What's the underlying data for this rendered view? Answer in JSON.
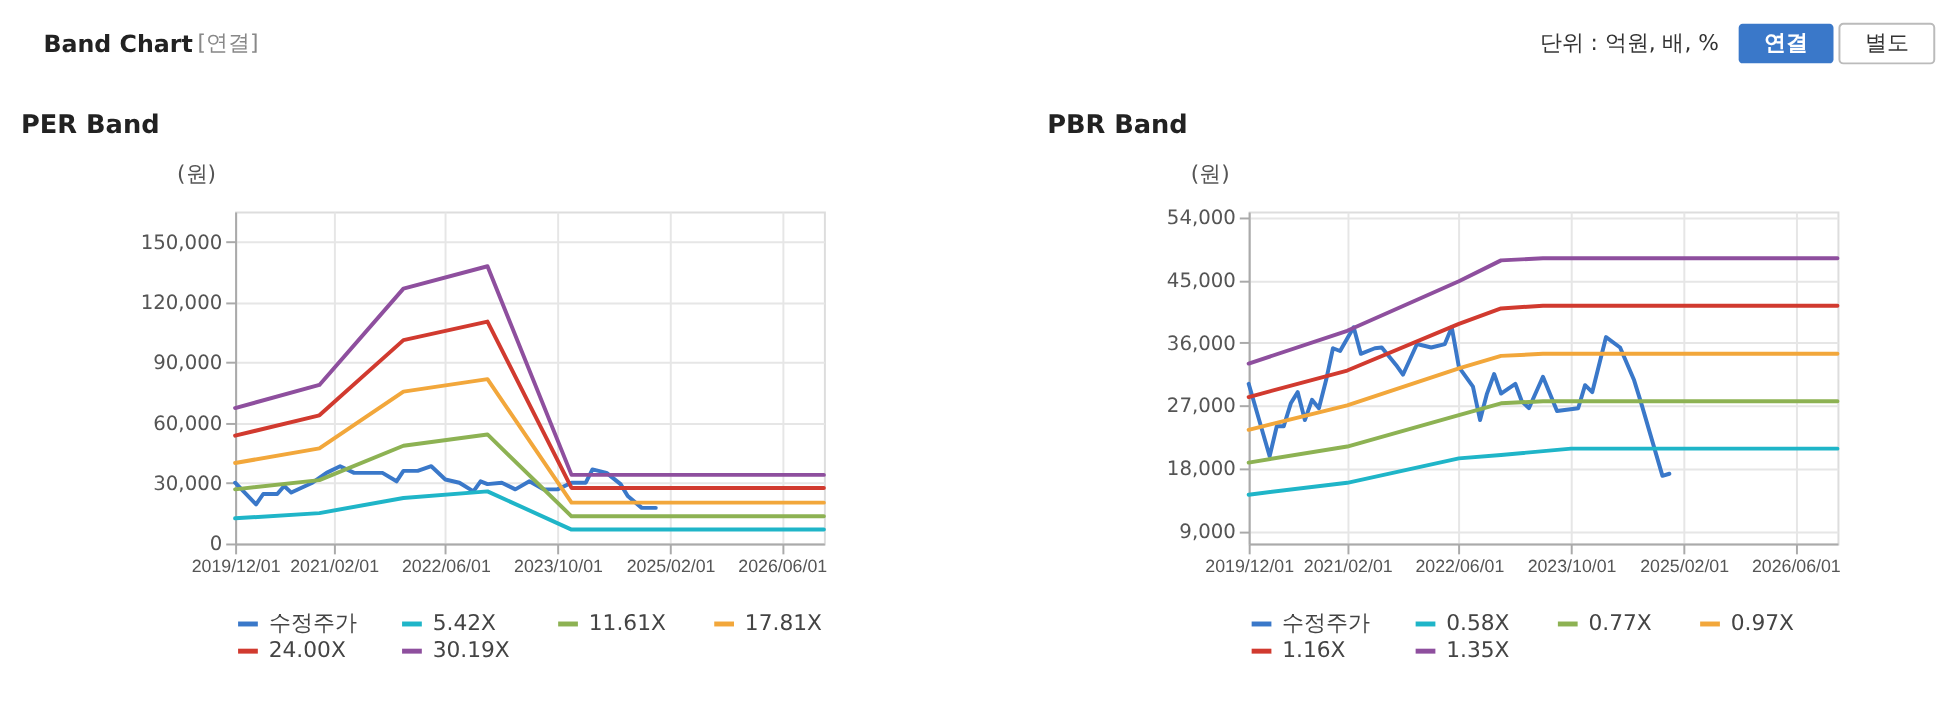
{
  "chart_data": [
    {
      "type": "line",
      "title": "PER Band",
      "ylabel": "(원)",
      "annotations": [
        "Band Chart",
        "[연결]",
        "단위 : 억원, 배, %",
        "연결",
        "별도"
      ],
      "xlim": [
        "2019-12-01",
        "2026-12-01"
      ],
      "xticks": [
        {
          "value": "2019-12-01",
          "label": "2019/12/01"
        },
        {
          "value": "2021-02-01",
          "label": "2021/02/01"
        },
        {
          "value": "2022-06-01",
          "label": "2022/06/01"
        },
        {
          "value": "2023-10-01",
          "label": "2023/10/01"
        },
        {
          "value": "2025-02-01",
          "label": "2025/02/01"
        },
        {
          "value": "2026-06-01",
          "label": "2026/06/01"
        }
      ],
      "ylim": [
        0,
        165000
      ],
      "yticks": [
        0,
        {
          "value": 30000,
          "label": "30,000"
        },
        {
          "value": 60000,
          "label": "60,000"
        },
        {
          "value": 90000,
          "label": "90,000"
        },
        {
          "value": 120000,
          "label": "120,000"
        },
        {
          "value": 150000,
          "label": "150,000"
        }
      ],
      "grid": true,
      "legend": "bottom",
      "marker": "none",
      "line_style": "solid",
      "series": [
        {
          "name": "수정주가",
          "color": "#3a78c9",
          "x": [
            "2019-12",
            "2020-03",
            "2020-04",
            "2020-06",
            "2020-07",
            "2020-08",
            "2020-10",
            "2020-11",
            "2021-01",
            "2021-03",
            "2021-05",
            "2021-09",
            "2021-11",
            "2021-12",
            "2022-02",
            "2022-04",
            "2022-06",
            "2022-08",
            "2022-10",
            "2022-11",
            "2022-12",
            "2023-02",
            "2023-04",
            "2023-06",
            "2023-08",
            "2023-10",
            "2023-12",
            "2024-02",
            "2024-03",
            "2024-05",
            "2024-07",
            "2024-08",
            "2024-10",
            "2024-12"
          ],
          "values": [
            30200,
            19400,
            24600,
            24600,
            28600,
            25300,
            28600,
            30200,
            35100,
            38400,
            35100,
            35100,
            30900,
            36100,
            36100,
            38400,
            31800,
            30200,
            25900,
            30900,
            29500,
            30200,
            26900,
            30900,
            26900,
            26900,
            30200,
            30200,
            36800,
            35100,
            29500,
            23600,
            17700,
            17700
          ]
        },
        {
          "name": "5.42X",
          "color": "#1fb5c8",
          "x": [
            "2019-12",
            "2020-12",
            "2021-12",
            "2022-12",
            "2023-12",
            "2026-12"
          ],
          "values": [
            12500,
            15100,
            22600,
            25900,
            6900,
            6900
          ]
        },
        {
          "name": "11.61X",
          "color": "#8db253",
          "x": [
            "2019-12",
            "2020-12",
            "2021-12",
            "2022-12",
            "2023-12",
            "2026-12"
          ],
          "values": [
            26900,
            31500,
            48600,
            54200,
            13500,
            13500
          ]
        },
        {
          "name": "17.81X",
          "color": "#f2a73b",
          "x": [
            "2019-12",
            "2020-12",
            "2021-12",
            "2022-12",
            "2023-12",
            "2026-12"
          ],
          "values": [
            40000,
            47300,
            75500,
            81700,
            20300,
            20300
          ]
        },
        {
          "name": "24.00X",
          "color": "#d13a2f",
          "x": [
            "2019-12",
            "2020-12",
            "2021-12",
            "2022-12",
            "2023-12",
            "2026-12"
          ],
          "values": [
            53600,
            63700,
            101100,
            110300,
            27600,
            27600
          ]
        },
        {
          "name": "30.19X",
          "color": "#8e4f9e",
          "x": [
            "2019-12",
            "2020-12",
            "2021-12",
            "2022-12",
            "2023-12",
            "2026-12"
          ],
          "values": [
            67300,
            78800,
            126700,
            137800,
            34100,
            34100
          ]
        }
      ]
    },
    {
      "type": "line",
      "title": "PBR Band",
      "ylabel": "(원)",
      "xlim": [
        "2019-12-01",
        "2026-12-01"
      ],
      "xticks": [
        {
          "value": "2019-12-01",
          "label": "2019/12/01"
        },
        {
          "value": "2021-02-01",
          "label": "2021/02/01"
        },
        {
          "value": "2022-06-01",
          "label": "2022/06/01"
        },
        {
          "value": "2023-10-01",
          "label": "2023/10/01"
        },
        {
          "value": "2025-02-01",
          "label": "2025/02/01"
        },
        {
          "value": "2026-06-01",
          "label": "2026/06/01"
        }
      ],
      "ylim": [
        7200,
        54800
      ],
      "yticks": [
        {
          "value": 9000,
          "label": "9,000"
        },
        {
          "value": 18000,
          "label": "18,000"
        },
        {
          "value": 27000,
          "label": "27,000"
        },
        {
          "value": 36000,
          "label": "36,000"
        },
        {
          "value": 45000,
          "label": "45,000"
        },
        {
          "value": 54000,
          "label": "54,000"
        }
      ],
      "grid": true,
      "legend": "bottom",
      "marker": "none",
      "line_style": "solid",
      "series": [
        {
          "name": "수정주가",
          "color": "#3a78c9",
          "x": [
            "2019-12",
            "2020-03",
            "2020-04",
            "2020-05",
            "2020-06",
            "2020-07",
            "2020-08",
            "2020-09",
            "2020-10",
            "2020-11",
            "2020-12",
            "2021-01",
            "2021-03",
            "2021-04",
            "2021-06",
            "2021-07",
            "2021-09",
            "2021-10",
            "2021-12",
            "2022-02",
            "2022-04",
            "2022-05",
            "2022-06",
            "2022-08",
            "2022-09",
            "2022-10",
            "2022-11",
            "2022-12",
            "2023-02",
            "2023-03",
            "2023-04",
            "2023-06",
            "2023-08",
            "2023-11",
            "2023-12",
            "2024-01",
            "2024-03",
            "2024-05",
            "2024-07",
            "2024-08",
            "2024-11",
            "2024-12"
          ],
          "values": [
            30100,
            19700,
            24000,
            24000,
            27300,
            28900,
            24900,
            27800,
            26600,
            30600,
            35200,
            34800,
            38200,
            34400,
            35200,
            35300,
            32800,
            31400,
            35800,
            35300,
            35800,
            38200,
            32500,
            29700,
            24900,
            28700,
            31500,
            28700,
            30100,
            27600,
            26600,
            31100,
            26200,
            26600,
            29900,
            28900,
            36800,
            35300,
            30600,
            27300,
            16900,
            17200
          ]
        },
        {
          "name": "0.58X",
          "color": "#1fb5c8",
          "x": [
            "2019-12",
            "2021-02",
            "2022-06",
            "2022-12",
            "2023-10",
            "2026-12"
          ],
          "values": [
            14200,
            15900,
            19400,
            19900,
            20800,
            20800
          ]
        },
        {
          "name": "0.77X",
          "color": "#8db253",
          "x": [
            "2019-12",
            "2021-02",
            "2022-06",
            "2022-12",
            "2023-06",
            "2026-12"
          ],
          "values": [
            18800,
            21100,
            25600,
            27300,
            27600,
            27600
          ]
        },
        {
          "name": "0.97X",
          "color": "#f2a73b",
          "x": [
            "2019-12",
            "2021-02",
            "2022-06",
            "2022-12",
            "2023-06",
            "2026-12"
          ],
          "values": [
            23500,
            27000,
            32300,
            34100,
            34400,
            34400
          ]
        },
        {
          "name": "1.16X",
          "color": "#d13a2f",
          "x": [
            "2019-12",
            "2021-02",
            "2022-06",
            "2022-12",
            "2023-06",
            "2026-12"
          ],
          "values": [
            28200,
            32000,
            38700,
            40900,
            41300,
            41300
          ]
        },
        {
          "name": "1.35X",
          "color": "#8e4f9e",
          "x": [
            "2019-12",
            "2021-02",
            "2022-06",
            "2022-12",
            "2023-06",
            "2026-12"
          ],
          "values": [
            33000,
            37700,
            44800,
            47800,
            48100,
            48100
          ]
        }
      ]
    }
  ]
}
